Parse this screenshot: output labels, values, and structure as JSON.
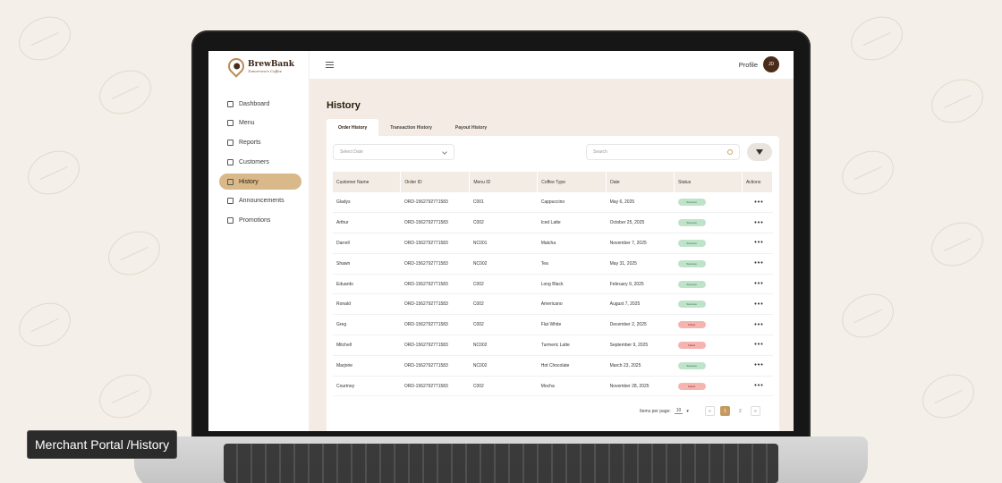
{
  "app": {
    "brand_name": "BrewBank",
    "brand_tagline": "Tomorrow's Coffee"
  },
  "caption": "Merchant Portal /History",
  "sidebar": {
    "items": [
      {
        "label": "Dashboard",
        "icon": "grid-icon"
      },
      {
        "label": "Menu",
        "icon": "cup-icon"
      },
      {
        "label": "Reports",
        "icon": "document-icon"
      },
      {
        "label": "Customers",
        "icon": "users-icon"
      },
      {
        "label": "History",
        "icon": "history-icon",
        "active": true
      },
      {
        "label": "Announcements",
        "icon": "megaphone-icon"
      },
      {
        "label": "Promotions",
        "icon": "tag-icon"
      }
    ]
  },
  "topbar": {
    "profile_label": "Profile",
    "avatar_initials": "JD"
  },
  "page": {
    "title": "History",
    "tabs": [
      {
        "label": "Order History",
        "active": true
      },
      {
        "label": "Transaction History"
      },
      {
        "label": "Payout History"
      }
    ],
    "date_placeholder": "Select Date",
    "search_placeholder": "Search"
  },
  "table": {
    "columns": [
      "Customer Name",
      "Order  ID",
      "Menu ID",
      "Coffee Type",
      "Date",
      "Status",
      "Actions"
    ],
    "rows": [
      {
        "name": "Gladys",
        "order_id": "ORD-1562792771583",
        "menu_id": "C001",
        "coffee": "Cappuccino",
        "date": "May 6, 2025",
        "status": "Success"
      },
      {
        "name": "Arthur",
        "order_id": "ORD-1562792771583",
        "menu_id": "C002",
        "coffee": "Iced Latte",
        "date": "October 25, 2025",
        "status": "Success"
      },
      {
        "name": "Darrell",
        "order_id": "ORD-1562792771583",
        "menu_id": "NC001",
        "coffee": "Matcha",
        "date": "November 7, 2025",
        "status": "Success"
      },
      {
        "name": "Shawn",
        "order_id": "ORD-1562792771583",
        "menu_id": "NC002",
        "coffee": "Tea",
        "date": "May 31, 2025",
        "status": "Success"
      },
      {
        "name": "Eduardo",
        "order_id": "ORD-1562792771583",
        "menu_id": "C002",
        "coffee": "Long Black",
        "date": "February 9, 2025",
        "status": "Success"
      },
      {
        "name": "Ronald",
        "order_id": "ORD-1562792771583",
        "menu_id": "C002",
        "coffee": "Americano",
        "date": "August 7, 2025",
        "status": "Success"
      },
      {
        "name": "Greg",
        "order_id": "ORD-1562792771583",
        "menu_id": "C002",
        "coffee": "Flat White",
        "date": "December 2, 2025",
        "status": "Failed"
      },
      {
        "name": "Mitchell",
        "order_id": "ORD-1562792771583",
        "menu_id": "NC002",
        "coffee": "Turmeric Latte",
        "date": "September 9, 2025",
        "status": "Failed"
      },
      {
        "name": "Marjorie",
        "order_id": "ORD-1562792771583",
        "menu_id": "NC002",
        "coffee": "Hot Chocolate",
        "date": "March 23, 2025",
        "status": "Success"
      },
      {
        "name": "Courtney",
        "order_id": "ORD-1562792771583",
        "menu_id": "C002",
        "coffee": "Mocha",
        "date": "November 28, 2025",
        "status": "Failed"
      }
    ],
    "actions_glyph": "•••"
  },
  "pagination": {
    "items_per_page_label": "Items per page:",
    "items_per_page_value": "10",
    "first_label": "«",
    "pages": [
      "1",
      "2"
    ],
    "current_page": "1",
    "next_label": "»"
  },
  "colors": {
    "accent": "#c49a62",
    "sidebar_active": "#d9b98a",
    "success_bg": "#bfe3c9",
    "failed_bg": "#f5b4b0"
  }
}
